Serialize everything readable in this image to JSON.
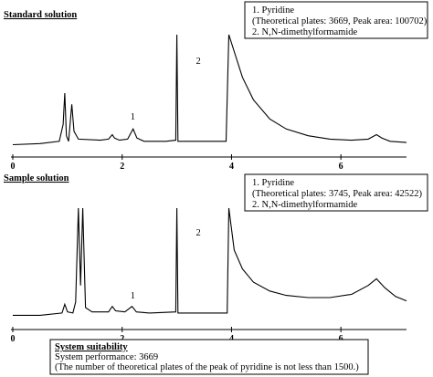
{
  "chart_data": [
    {
      "type": "line",
      "title": "Standard solution",
      "xlabel": "",
      "ylabel": "",
      "xlim": [
        0,
        7.2
      ],
      "x_ticks": [
        "0",
        "2",
        "4",
        "6"
      ],
      "x_tick_values": [
        0,
        2,
        4,
        6
      ],
      "peak_labels": [
        {
          "label": "1",
          "x": 2.2
        },
        {
          "label": "2",
          "x": 3.35
        }
      ],
      "legend_lines": [
        "1. Pyridine",
        "(Theoretical plates: 3669, Peak area: 100702)",
        "2. N,N-dimethylformamide"
      ],
      "trace": [
        [
          0.0,
          0.02
        ],
        [
          0.5,
          0.03
        ],
        [
          0.85,
          0.05
        ],
        [
          0.92,
          0.2
        ],
        [
          0.95,
          0.48
        ],
        [
          0.98,
          0.1
        ],
        [
          1.02,
          0.05
        ],
        [
          1.05,
          0.22
        ],
        [
          1.08,
          0.38
        ],
        [
          1.12,
          0.14
        ],
        [
          1.2,
          0.07
        ],
        [
          1.6,
          0.06
        ],
        [
          1.75,
          0.07
        ],
        [
          1.82,
          0.11
        ],
        [
          1.86,
          0.08
        ],
        [
          1.95,
          0.06
        ],
        [
          2.1,
          0.07
        ],
        [
          2.2,
          0.16
        ],
        [
          2.27,
          0.08
        ],
        [
          2.4,
          0.05
        ],
        [
          2.8,
          0.05
        ],
        [
          2.98,
          0.06
        ],
        [
          3.0,
          1.0
        ],
        [
          3.02,
          0.05
        ],
        [
          3.4,
          0.05
        ],
        [
          3.9,
          0.05
        ],
        [
          3.95,
          1.0
        ],
        [
          4.05,
          0.85
        ],
        [
          4.2,
          0.62
        ],
        [
          4.4,
          0.42
        ],
        [
          4.7,
          0.25
        ],
        [
          5.0,
          0.16
        ],
        [
          5.4,
          0.1
        ],
        [
          5.8,
          0.07
        ],
        [
          6.2,
          0.06
        ],
        [
          6.5,
          0.07
        ],
        [
          6.65,
          0.11
        ],
        [
          6.75,
          0.08
        ],
        [
          6.9,
          0.05
        ],
        [
          7.2,
          0.04
        ]
      ]
    },
    {
      "type": "line",
      "title": "Sample solution",
      "xlabel": "",
      "ylabel": "",
      "xlim": [
        0,
        7.2
      ],
      "x_ticks": [
        "0",
        "2",
        "4",
        "6"
      ],
      "x_tick_values": [
        0,
        2,
        4,
        6
      ],
      "peak_labels": [
        {
          "label": "1",
          "x": 2.2
        },
        {
          "label": "2",
          "x": 3.35
        }
      ],
      "legend_lines": [
        "1. Pyridine",
        "(Theoretical plates: 3745, Peak area: 42522)",
        "2. N,N-dimethylformamide"
      ],
      "trace": [
        [
          0.0,
          0.03
        ],
        [
          0.5,
          0.03
        ],
        [
          0.9,
          0.05
        ],
        [
          0.95,
          0.13
        ],
        [
          1.0,
          0.06
        ],
        [
          1.1,
          0.05
        ],
        [
          1.15,
          0.15
        ],
        [
          1.2,
          1.0
        ],
        [
          1.24,
          0.3
        ],
        [
          1.28,
          1.0
        ],
        [
          1.33,
          0.1
        ],
        [
          1.45,
          0.06
        ],
        [
          1.75,
          0.06
        ],
        [
          1.82,
          0.11
        ],
        [
          1.88,
          0.07
        ],
        [
          2.05,
          0.06
        ],
        [
          2.18,
          0.11
        ],
        [
          2.26,
          0.06
        ],
        [
          2.5,
          0.05
        ],
        [
          2.98,
          0.06
        ],
        [
          3.0,
          1.0
        ],
        [
          3.02,
          0.05
        ],
        [
          3.4,
          0.05
        ],
        [
          3.92,
          0.05
        ],
        [
          3.95,
          1.0
        ],
        [
          4.05,
          0.62
        ],
        [
          4.2,
          0.45
        ],
        [
          4.4,
          0.33
        ],
        [
          4.7,
          0.25
        ],
        [
          5.0,
          0.21
        ],
        [
          5.4,
          0.19
        ],
        [
          5.8,
          0.19
        ],
        [
          6.2,
          0.22
        ],
        [
          6.5,
          0.3
        ],
        [
          6.65,
          0.36
        ],
        [
          6.8,
          0.28
        ],
        [
          7.0,
          0.2
        ],
        [
          7.2,
          0.16
        ]
      ]
    }
  ],
  "system_suitability": {
    "heading": "System suitability",
    "line1": "System performance: 3669",
    "line2": "(The number of theoretical plates of the peak of pyridine is not less than 1500.)"
  }
}
